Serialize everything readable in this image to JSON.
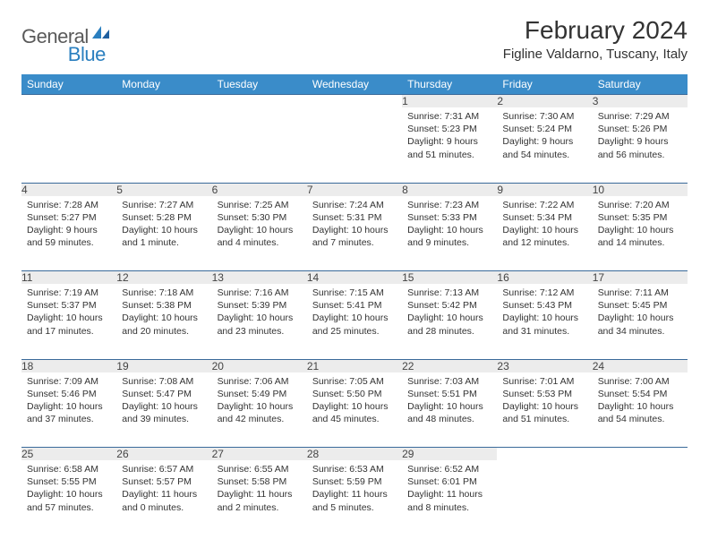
{
  "brand": {
    "general": "General",
    "blue": "Blue"
  },
  "title": "February 2024",
  "location": "Figline Valdarno, Tuscany, Italy",
  "colors": {
    "header_bg": "#3a8cc9",
    "header_text": "#ffffff",
    "daynum_bg": "#ececec",
    "border": "#3a6a9a",
    "logo_gray": "#5a5a5a",
    "logo_blue": "#2a7fbf"
  },
  "weekdays": [
    "Sunday",
    "Monday",
    "Tuesday",
    "Wednesday",
    "Thursday",
    "Friday",
    "Saturday"
  ],
  "weeks": [
    {
      "nums": [
        "",
        "",
        "",
        "",
        "1",
        "2",
        "3"
      ],
      "cells": [
        null,
        null,
        null,
        null,
        {
          "sunrise": "Sunrise: 7:31 AM",
          "sunset": "Sunset: 5:23 PM",
          "day1": "Daylight: 9 hours",
          "day2": "and 51 minutes."
        },
        {
          "sunrise": "Sunrise: 7:30 AM",
          "sunset": "Sunset: 5:24 PM",
          "day1": "Daylight: 9 hours",
          "day2": "and 54 minutes."
        },
        {
          "sunrise": "Sunrise: 7:29 AM",
          "sunset": "Sunset: 5:26 PM",
          "day1": "Daylight: 9 hours",
          "day2": "and 56 minutes."
        }
      ]
    },
    {
      "nums": [
        "4",
        "5",
        "6",
        "7",
        "8",
        "9",
        "10"
      ],
      "cells": [
        {
          "sunrise": "Sunrise: 7:28 AM",
          "sunset": "Sunset: 5:27 PM",
          "day1": "Daylight: 9 hours",
          "day2": "and 59 minutes."
        },
        {
          "sunrise": "Sunrise: 7:27 AM",
          "sunset": "Sunset: 5:28 PM",
          "day1": "Daylight: 10 hours",
          "day2": "and 1 minute."
        },
        {
          "sunrise": "Sunrise: 7:25 AM",
          "sunset": "Sunset: 5:30 PM",
          "day1": "Daylight: 10 hours",
          "day2": "and 4 minutes."
        },
        {
          "sunrise": "Sunrise: 7:24 AM",
          "sunset": "Sunset: 5:31 PM",
          "day1": "Daylight: 10 hours",
          "day2": "and 7 minutes."
        },
        {
          "sunrise": "Sunrise: 7:23 AM",
          "sunset": "Sunset: 5:33 PM",
          "day1": "Daylight: 10 hours",
          "day2": "and 9 minutes."
        },
        {
          "sunrise": "Sunrise: 7:22 AM",
          "sunset": "Sunset: 5:34 PM",
          "day1": "Daylight: 10 hours",
          "day2": "and 12 minutes."
        },
        {
          "sunrise": "Sunrise: 7:20 AM",
          "sunset": "Sunset: 5:35 PM",
          "day1": "Daylight: 10 hours",
          "day2": "and 14 minutes."
        }
      ]
    },
    {
      "nums": [
        "11",
        "12",
        "13",
        "14",
        "15",
        "16",
        "17"
      ],
      "cells": [
        {
          "sunrise": "Sunrise: 7:19 AM",
          "sunset": "Sunset: 5:37 PM",
          "day1": "Daylight: 10 hours",
          "day2": "and 17 minutes."
        },
        {
          "sunrise": "Sunrise: 7:18 AM",
          "sunset": "Sunset: 5:38 PM",
          "day1": "Daylight: 10 hours",
          "day2": "and 20 minutes."
        },
        {
          "sunrise": "Sunrise: 7:16 AM",
          "sunset": "Sunset: 5:39 PM",
          "day1": "Daylight: 10 hours",
          "day2": "and 23 minutes."
        },
        {
          "sunrise": "Sunrise: 7:15 AM",
          "sunset": "Sunset: 5:41 PM",
          "day1": "Daylight: 10 hours",
          "day2": "and 25 minutes."
        },
        {
          "sunrise": "Sunrise: 7:13 AM",
          "sunset": "Sunset: 5:42 PM",
          "day1": "Daylight: 10 hours",
          "day2": "and 28 minutes."
        },
        {
          "sunrise": "Sunrise: 7:12 AM",
          "sunset": "Sunset: 5:43 PM",
          "day1": "Daylight: 10 hours",
          "day2": "and 31 minutes."
        },
        {
          "sunrise": "Sunrise: 7:11 AM",
          "sunset": "Sunset: 5:45 PM",
          "day1": "Daylight: 10 hours",
          "day2": "and 34 minutes."
        }
      ]
    },
    {
      "nums": [
        "18",
        "19",
        "20",
        "21",
        "22",
        "23",
        "24"
      ],
      "cells": [
        {
          "sunrise": "Sunrise: 7:09 AM",
          "sunset": "Sunset: 5:46 PM",
          "day1": "Daylight: 10 hours",
          "day2": "and 37 minutes."
        },
        {
          "sunrise": "Sunrise: 7:08 AM",
          "sunset": "Sunset: 5:47 PM",
          "day1": "Daylight: 10 hours",
          "day2": "and 39 minutes."
        },
        {
          "sunrise": "Sunrise: 7:06 AM",
          "sunset": "Sunset: 5:49 PM",
          "day1": "Daylight: 10 hours",
          "day2": "and 42 minutes."
        },
        {
          "sunrise": "Sunrise: 7:05 AM",
          "sunset": "Sunset: 5:50 PM",
          "day1": "Daylight: 10 hours",
          "day2": "and 45 minutes."
        },
        {
          "sunrise": "Sunrise: 7:03 AM",
          "sunset": "Sunset: 5:51 PM",
          "day1": "Daylight: 10 hours",
          "day2": "and 48 minutes."
        },
        {
          "sunrise": "Sunrise: 7:01 AM",
          "sunset": "Sunset: 5:53 PM",
          "day1": "Daylight: 10 hours",
          "day2": "and 51 minutes."
        },
        {
          "sunrise": "Sunrise: 7:00 AM",
          "sunset": "Sunset: 5:54 PM",
          "day1": "Daylight: 10 hours",
          "day2": "and 54 minutes."
        }
      ]
    },
    {
      "nums": [
        "25",
        "26",
        "27",
        "28",
        "29",
        "",
        ""
      ],
      "cells": [
        {
          "sunrise": "Sunrise: 6:58 AM",
          "sunset": "Sunset: 5:55 PM",
          "day1": "Daylight: 10 hours",
          "day2": "and 57 minutes."
        },
        {
          "sunrise": "Sunrise: 6:57 AM",
          "sunset": "Sunset: 5:57 PM",
          "day1": "Daylight: 11 hours",
          "day2": "and 0 minutes."
        },
        {
          "sunrise": "Sunrise: 6:55 AM",
          "sunset": "Sunset: 5:58 PM",
          "day1": "Daylight: 11 hours",
          "day2": "and 2 minutes."
        },
        {
          "sunrise": "Sunrise: 6:53 AM",
          "sunset": "Sunset: 5:59 PM",
          "day1": "Daylight: 11 hours",
          "day2": "and 5 minutes."
        },
        {
          "sunrise": "Sunrise: 6:52 AM",
          "sunset": "Sunset: 6:01 PM",
          "day1": "Daylight: 11 hours",
          "day2": "and 8 minutes."
        },
        null,
        null
      ]
    }
  ]
}
